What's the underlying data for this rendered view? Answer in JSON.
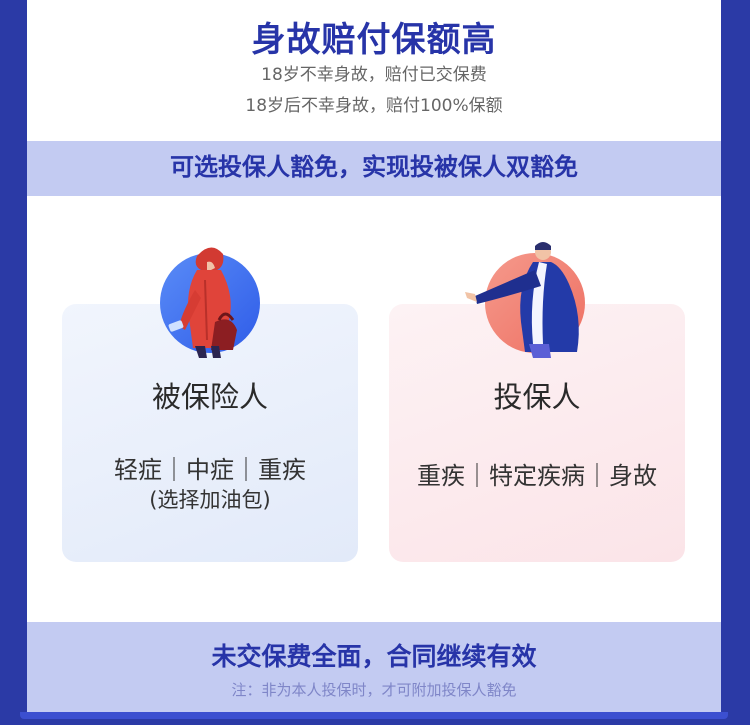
{
  "header": {
    "title": "身故赔付保额高",
    "line1": "18岁不幸身故，赔付已交保费",
    "line2": "18岁后不幸身故，赔付100%保额"
  },
  "banner": {
    "text": "可选投保人豁免，实现投被保人双豁免"
  },
  "cards": {
    "insured": {
      "title": "被保险人",
      "coverage": "轻症｜中症｜重疾",
      "addon": "(选择加油包)"
    },
    "policyholder": {
      "title": "投保人",
      "coverage": "重疾｜特定疾病｜身故"
    }
  },
  "footer": {
    "title": "未交保费全面，合同继续有效",
    "note": "注：非为本人投保时，才可附加投保人豁免"
  },
  "colors": {
    "frame": "#2b3aa6",
    "accent_text": "#2734a8",
    "band": "#c3cbf2",
    "insured_circle": "#3b6df0",
    "policyholder_circle": "#f07b6d"
  },
  "icons": {
    "insured": "woman-with-bag-illustration",
    "policyholder": "man-in-blue-coat-illustration"
  }
}
